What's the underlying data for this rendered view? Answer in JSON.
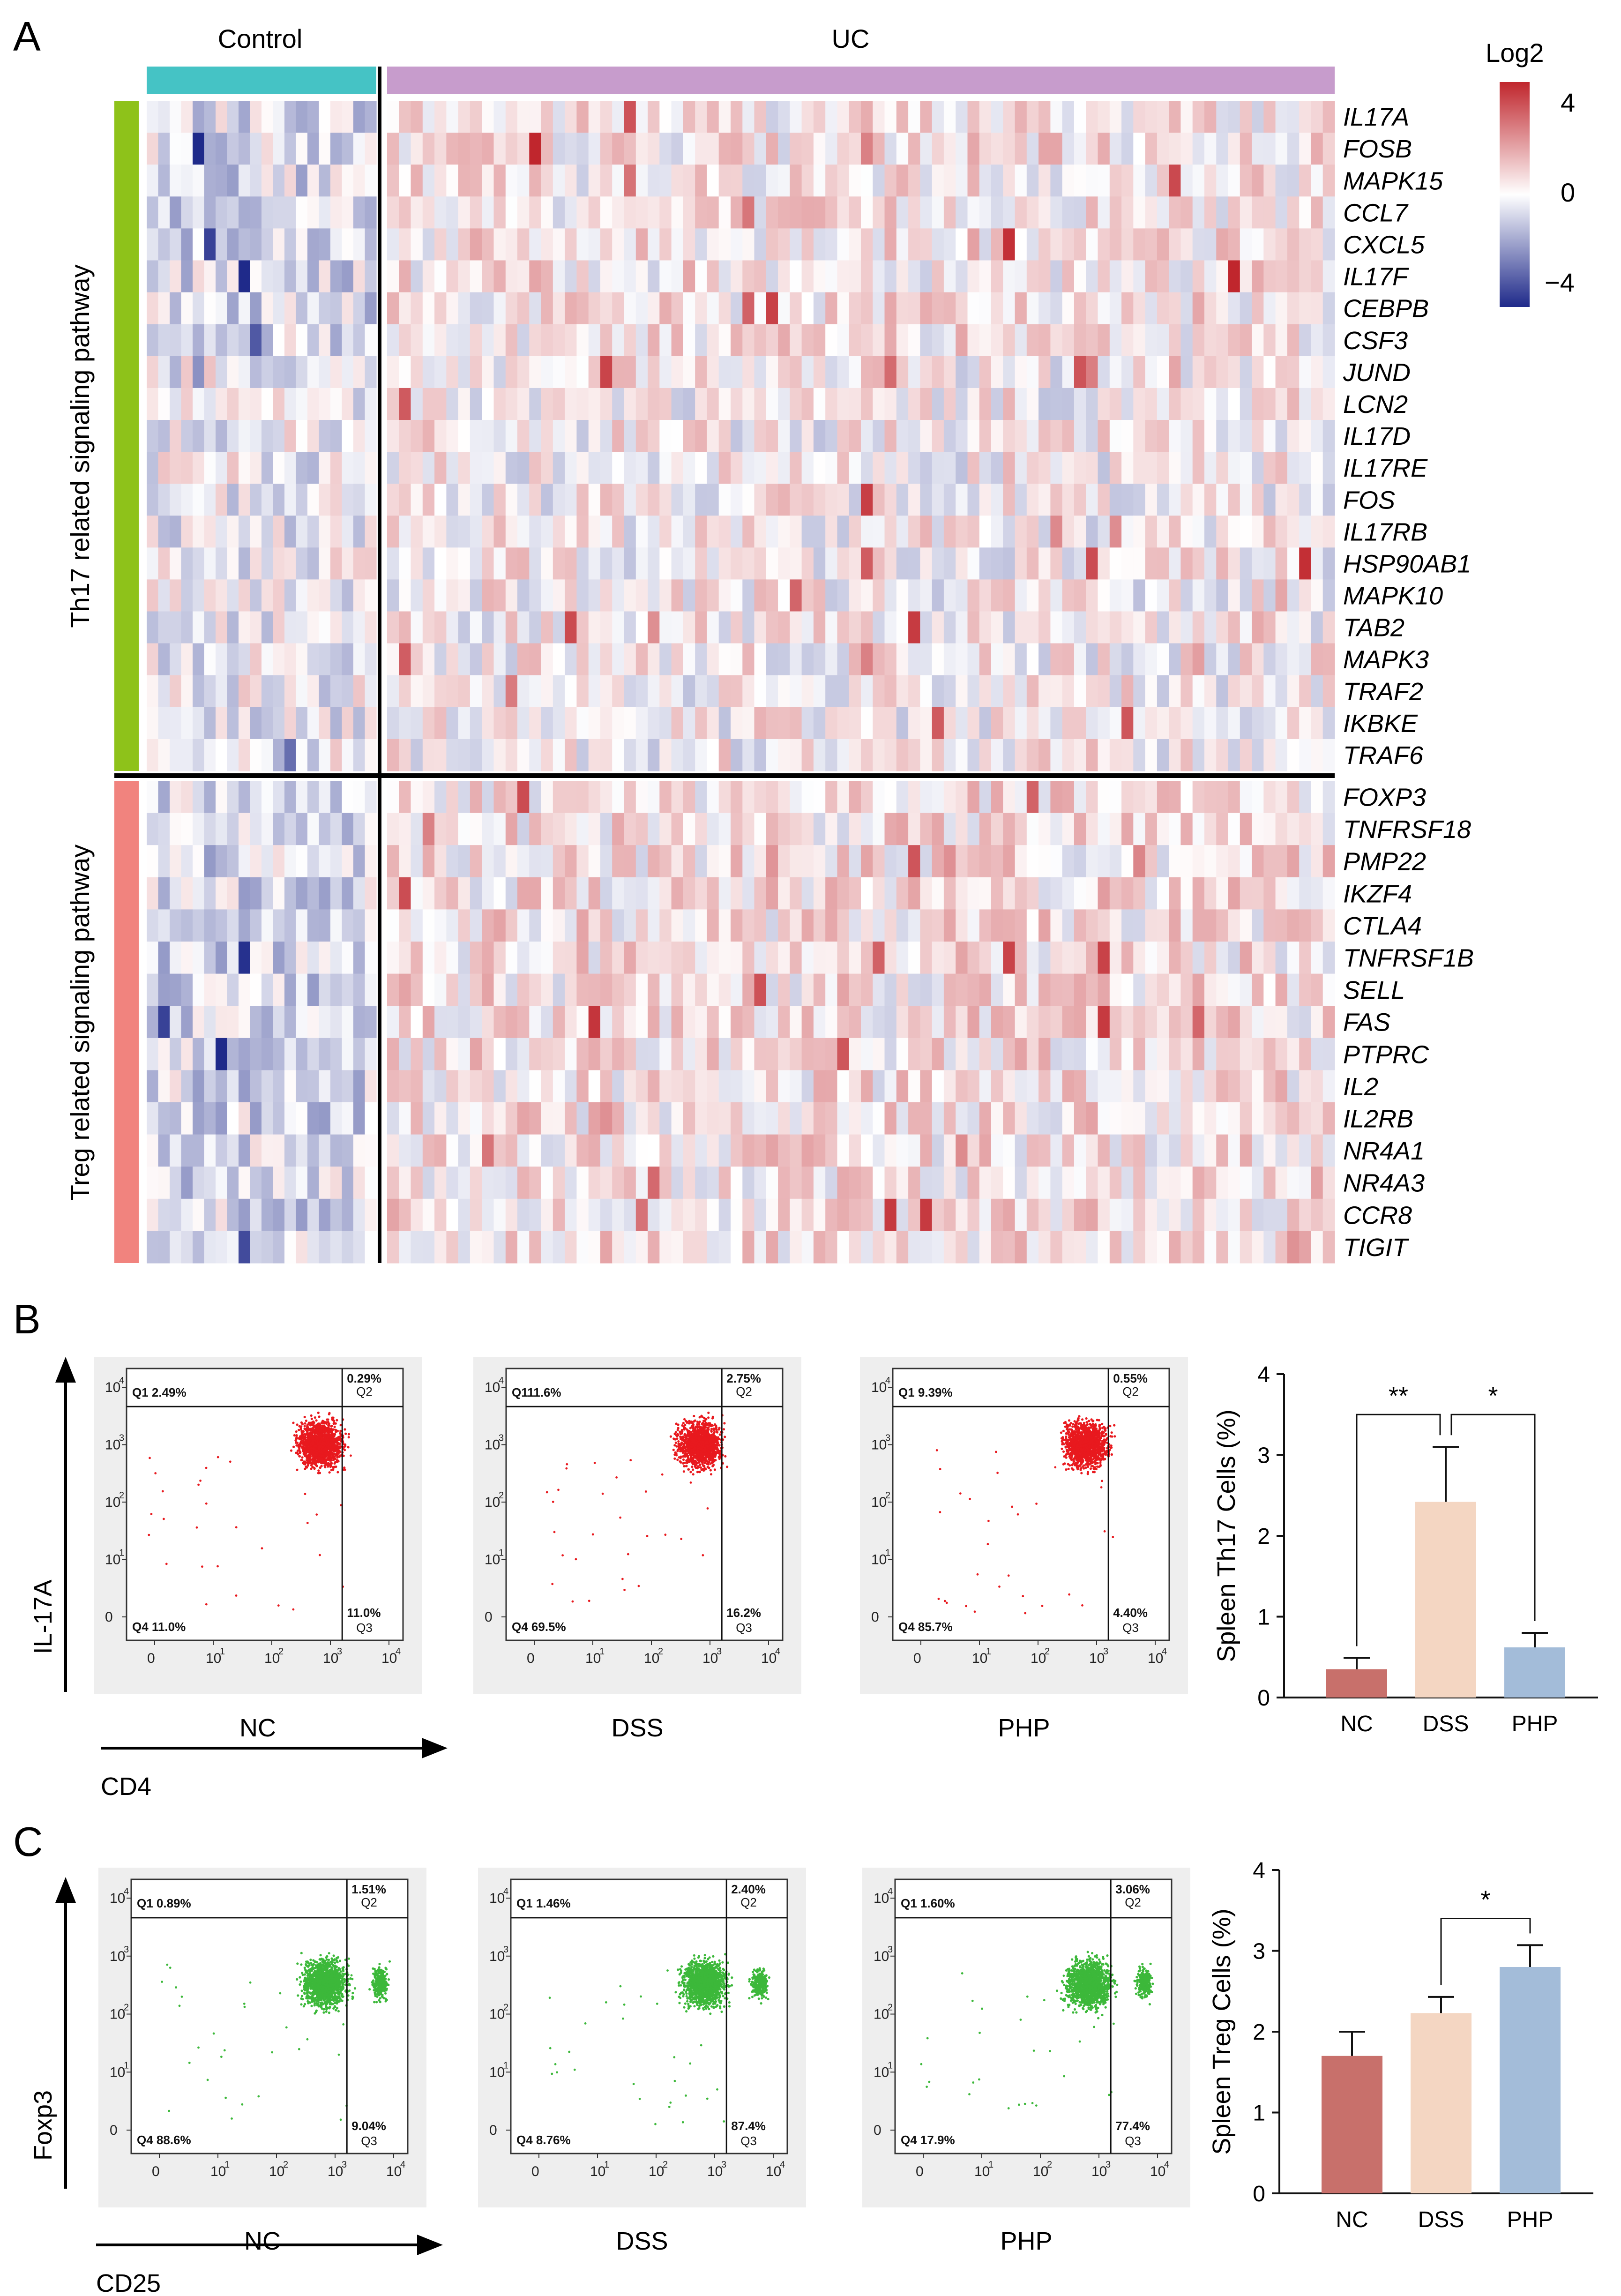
{
  "heatmap": {
    "panel": "A",
    "groups": [
      "Control",
      "UC"
    ],
    "control_columns": 20,
    "uc_columns": 80,
    "colorbar": {
      "title": "Log2",
      "ticks": [
        "4",
        "0",
        "−4"
      ],
      "colors": [
        "#c0262d",
        "#ffffff",
        "#1f2a8a"
      ]
    },
    "colorbar_range": [
      -4,
      4
    ],
    "modules": [
      {
        "label": "Th17 related signaling pathway",
        "color": "#8ec21a",
        "genes": [
          "IL17A",
          "FOSB",
          "MAPK15",
          "CCL7",
          "CXCL5",
          "IL17F",
          "CEBPB",
          "CSF3",
          "JUND",
          "LCN2",
          "IL17D",
          "IL17RE",
          "FOS",
          "IL17RB",
          "HSP90AB1",
          "MAPK10",
          "TAB2",
          "MAPK3",
          "TRAF2",
          "IKBKE",
          "TRAF6"
        ]
      },
      {
        "label": "Treg related signaling pathway",
        "color": "#f1837e",
        "genes": [
          "FOXP3",
          "TNFRSF18",
          "PMP22",
          "IKZF4",
          "CTLA4",
          "TNFRSF1B",
          "SELL",
          "FAS",
          "PTPRC",
          "IL2",
          "IL2RB",
          "NR4A1",
          "NR4A3",
          "CCR8",
          "TIGIT"
        ]
      }
    ],
    "group_bar_colors": {
      "control": "#45c3c5",
      "uc": "#c79ccc"
    }
  },
  "flow": [
    {
      "panel": "B",
      "y_axis": "IL-17A",
      "x_axis": "CD4",
      "dot_color": "#e8191e",
      "samples": [
        {
          "name": "NC",
          "q1": "Q1 2.49%",
          "q2": "0.29%",
          "q4": "Q4 11.0%",
          "q3": "11.0%",
          "q2_tag": "Q2",
          "q3_tag": "Q3"
        },
        {
          "name": "DSS",
          "q1": "Q111.6%",
          "q2": "2.75%",
          "q4": "Q4 69.5%",
          "q3": "16.2%",
          "q2_tag": "Q2",
          "q3_tag": "Q3"
        },
        {
          "name": "PHP",
          "q1": "Q1 9.39%",
          "q2": "0.55%",
          "q4": "Q4 85.7%",
          "q3": "4.40%",
          "q2_tag": "Q2",
          "q3_tag": "Q3"
        }
      ],
      "tick_labels": [
        "0",
        "10",
        "10",
        "10",
        "10"
      ],
      "exponents": [
        "1",
        "2",
        "3",
        "4"
      ]
    },
    {
      "panel": "C",
      "y_axis": "Foxp3",
      "x_axis": "CD25",
      "dot_color": "#3cb83a",
      "samples": [
        {
          "name": "NC",
          "q1": "Q1 0.89%",
          "q2": "1.51%",
          "q4": "Q4 88.6%",
          "q3": "9.04%",
          "q2_tag": "Q2",
          "q3_tag": "Q3"
        },
        {
          "name": "DSS",
          "q1": "Q1 1.46%",
          "q2": "2.40%",
          "q4": "Q4 8.76%",
          "q3": "87.4%",
          "q2_tag": "Q2",
          "q3_tag": "Q3"
        },
        {
          "name": "PHP",
          "q1": "Q1 1.60%",
          "q2": "3.06%",
          "q4": "Q4 17.9%",
          "q3": "77.4%",
          "q2_tag": "Q2",
          "q3_tag": "Q3"
        }
      ],
      "tick_labels": [
        "0",
        "10",
        "10",
        "10",
        "10"
      ],
      "exponents": [
        "1",
        "2",
        "3",
        "4"
      ]
    }
  ],
  "chart_data": [
    {
      "type": "bar",
      "panel": "B",
      "title": "",
      "xlabel": "",
      "ylabel": "Spleen Th17 Cells (%)",
      "categories": [
        "NC",
        "DSS",
        "PHP"
      ],
      "values": [
        0.35,
        2.42,
        0.62
      ],
      "errors": [
        0.14,
        0.68,
        0.18
      ],
      "colors": [
        "#c8706b",
        "#f4d6c2",
        "#a3bcd9"
      ],
      "ylim": [
        0,
        4
      ],
      "yticks": [
        "0",
        "1",
        "2",
        "3",
        "4"
      ],
      "significance": [
        {
          "from": "NC",
          "to": "DSS",
          "label": "**"
        },
        {
          "from": "DSS",
          "to": "PHP",
          "label": "*"
        }
      ]
    },
    {
      "type": "bar",
      "panel": "C",
      "title": "",
      "xlabel": "",
      "ylabel": "Spleen Treg Cells (%)",
      "categories": [
        "NC",
        "DSS",
        "PHP"
      ],
      "values": [
        1.7,
        2.23,
        2.8
      ],
      "errors": [
        0.3,
        0.2,
        0.27
      ],
      "colors": [
        "#c8706b",
        "#f4d6c2",
        "#a3bcd9"
      ],
      "ylim": [
        0,
        4
      ],
      "yticks": [
        "0",
        "1",
        "2",
        "3",
        "4"
      ],
      "significance": [
        {
          "from": "DSS",
          "to": "PHP",
          "label": "*"
        }
      ]
    }
  ]
}
